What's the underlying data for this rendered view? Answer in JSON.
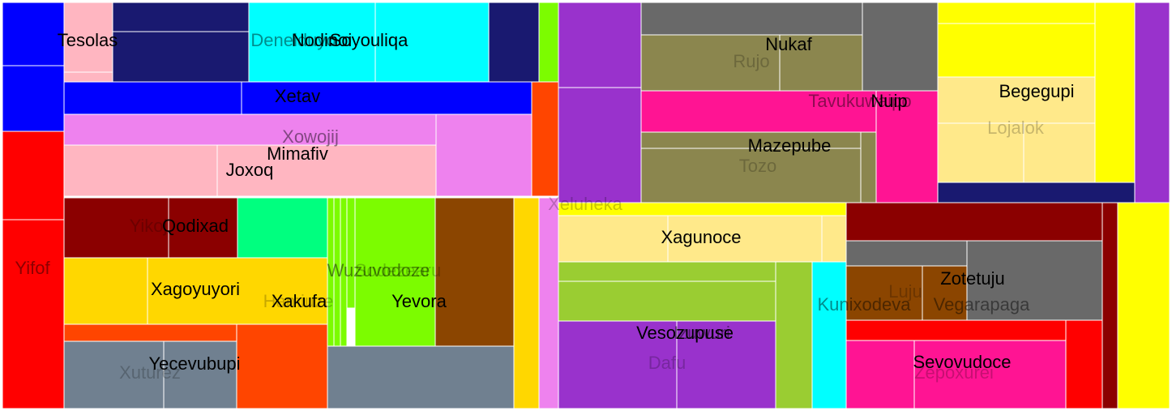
{
  "chart_data": {
    "type": "treemap",
    "labels": [
      {
        "text": "Tesolas",
        "tone": "dark"
      },
      {
        "text": "Deneiduyo",
        "tone": "mid"
      },
      {
        "text": "Nodinoi",
        "tone": "dark"
      },
      {
        "text": "Soyouliqa",
        "tone": "dark"
      },
      {
        "text": "Xetav",
        "tone": "dark"
      },
      {
        "text": "Xowojij",
        "tone": "mid"
      },
      {
        "text": "Mimafiv",
        "tone": "dark"
      },
      {
        "text": "Joxoq",
        "tone": "dark"
      },
      {
        "text": "Yifof",
        "tone": "mid"
      },
      {
        "text": "Yikoj",
        "tone": "faint"
      },
      {
        "text": "Qodixad",
        "tone": "dark"
      },
      {
        "text": "Xagoyuyori",
        "tone": "dark"
      },
      {
        "text": "Hamiuze",
        "tone": "faint"
      },
      {
        "text": "Xakufa",
        "tone": "dark"
      },
      {
        "text": "Wuzuvodoze",
        "tone": "mid"
      },
      {
        "text": "Sodezearu",
        "tone": "faint"
      },
      {
        "text": "Yevora",
        "tone": "dark"
      },
      {
        "text": "Yecevubupi",
        "tone": "dark"
      },
      {
        "text": "Xuturez",
        "tone": "faint"
      },
      {
        "text": "Xeluheka",
        "tone": "faint"
      },
      {
        "text": "Nukaf",
        "tone": "dark"
      },
      {
        "text": "Rujo",
        "tone": "faint"
      },
      {
        "text": "Tavukuwaipo",
        "tone": "mid"
      },
      {
        "text": "Nuip",
        "tone": "dark"
      },
      {
        "text": "Mazepube",
        "tone": "dark"
      },
      {
        "text": "Tozo",
        "tone": "faint"
      },
      {
        "text": "Begegupi",
        "tone": "dark"
      },
      {
        "text": "Lojalok",
        "tone": "faint"
      },
      {
        "text": "Xagunoce",
        "tone": "dark"
      },
      {
        "text": "Vesozupuse",
        "tone": "dark"
      },
      {
        "text": "Izuwuri",
        "tone": "mid"
      },
      {
        "text": "Dafu",
        "tone": "faint"
      },
      {
        "text": "Kunixodeva",
        "tone": "mid"
      },
      {
        "text": "Luju",
        "tone": "faint"
      },
      {
        "text": "Zotetuju",
        "tone": "dark"
      },
      {
        "text": "Vegarapaga",
        "tone": "mid"
      },
      {
        "text": "Sevovudoce",
        "tone": "dark"
      },
      {
        "text": "Zepoxurei",
        "tone": "faint"
      }
    ],
    "colors": {
      "blue": "#0000ff",
      "navy": "#191970",
      "cyan": "#00ffff",
      "lawngreen": "#7cfc00",
      "red": "#ff0000",
      "orangered": "#ff4500",
      "pink": "#ffb6c1",
      "violet": "#ee82ee",
      "darkred": "#8b0000",
      "springgreen": "#00ff7f",
      "gold": "#ffd700",
      "slategray": "#708090",
      "saddlebrown": "#8b4500",
      "darkorchid": "#9932cc",
      "dimgray": "#696969",
      "darkkhaki": "#8b864e",
      "deeppink": "#ff1493",
      "yellow": "#ffff00",
      "khaki": "#ffe98a",
      "yellowgreen": "#9acd32"
    }
  }
}
